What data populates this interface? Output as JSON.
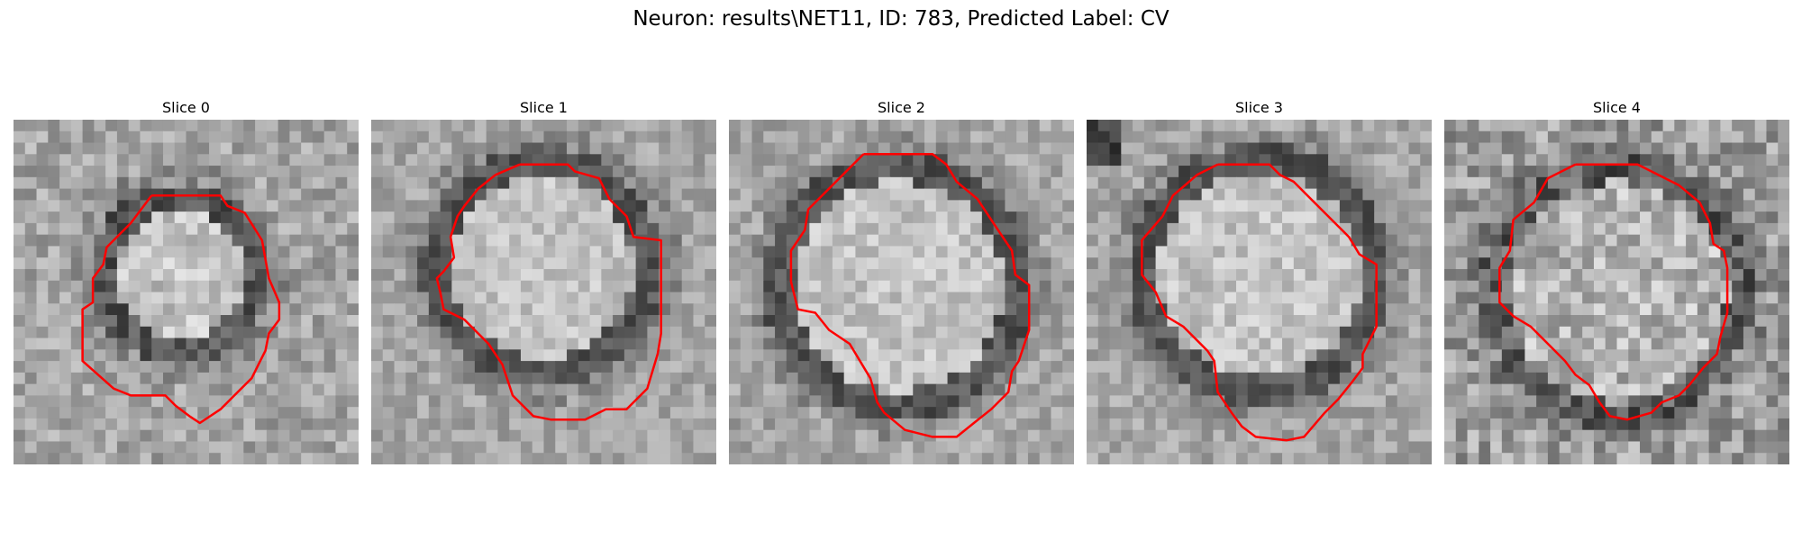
{
  "figure": {
    "title": "Neuron: results\\NET11, ID: 783, Predicted Label: CV",
    "contour_color": "#ff0000"
  },
  "slices": [
    {
      "title": "Slice 0"
    },
    {
      "title": "Slice 1"
    },
    {
      "title": "Slice 2"
    },
    {
      "title": "Slice 3"
    },
    {
      "title": "Slice 4"
    }
  ]
}
